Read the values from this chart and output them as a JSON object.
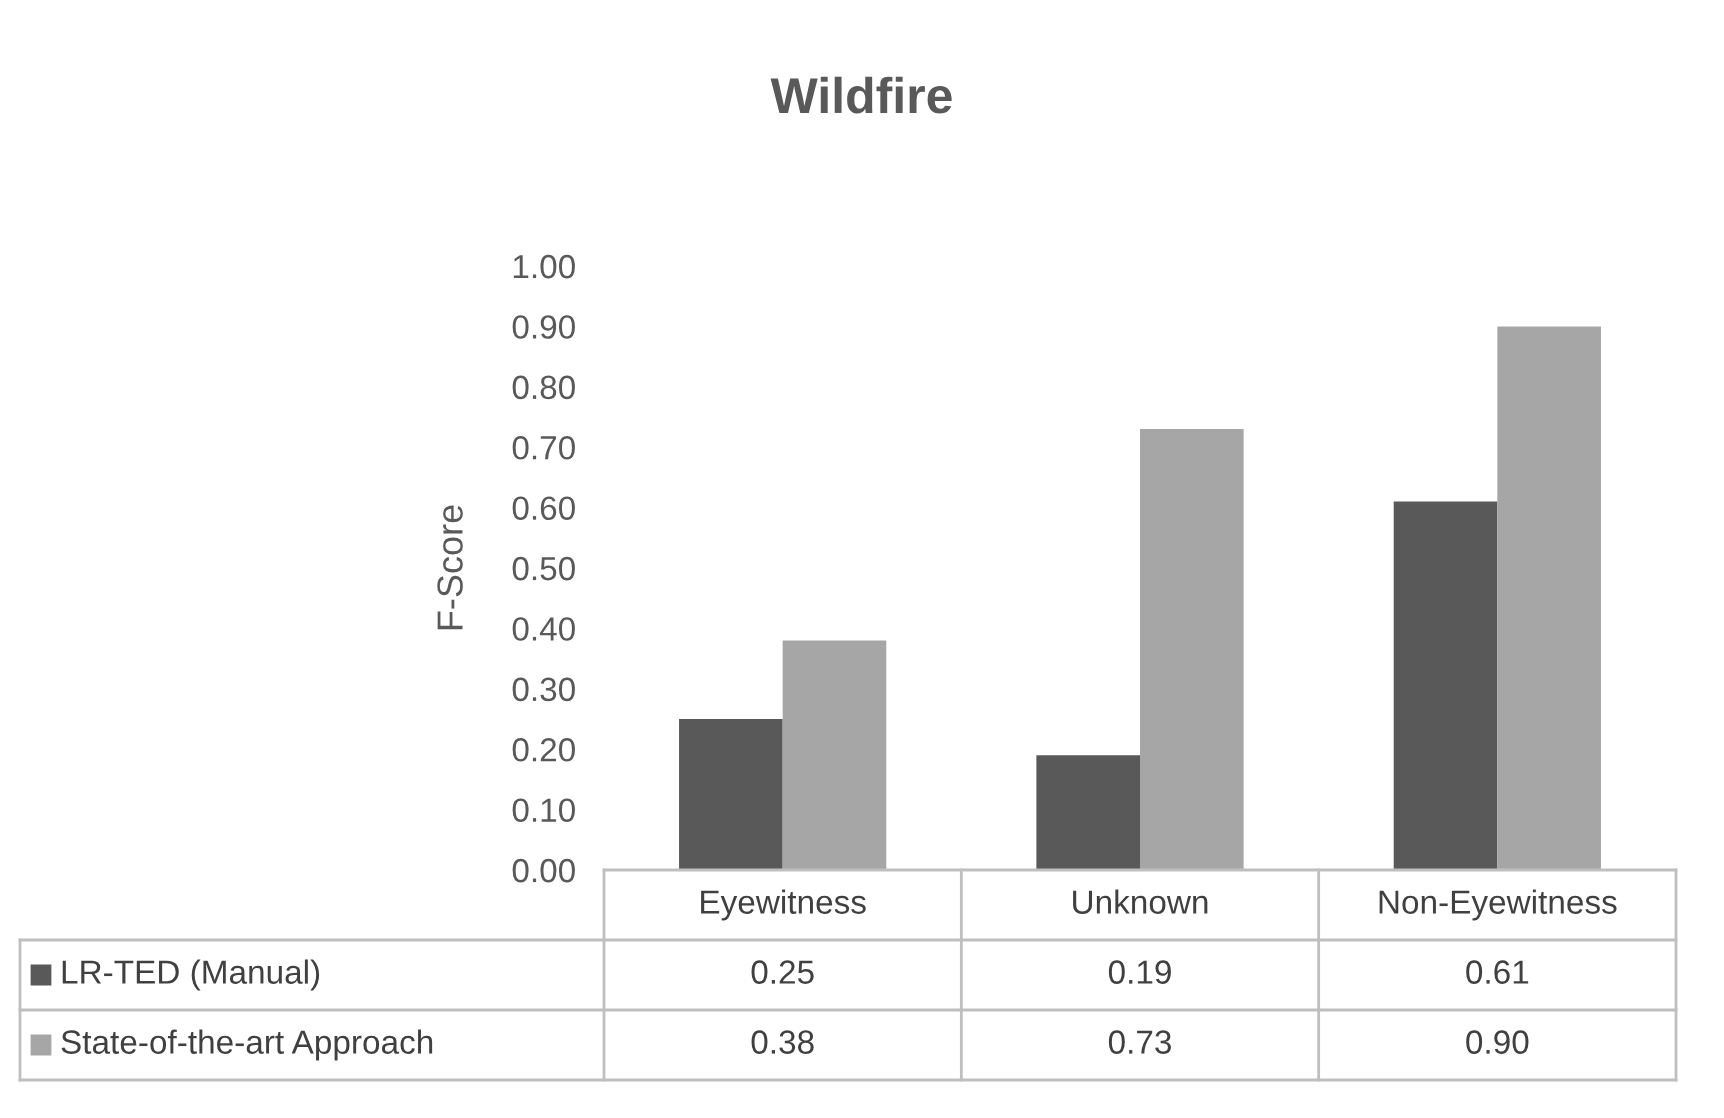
{
  "chart_data": {
    "type": "bar",
    "title": "Wildfire",
    "ylabel": "F-Score",
    "categories": [
      "Eyewitness",
      "Unknown",
      "Non-Eyewitness"
    ],
    "series": [
      {
        "name": "LR-TED (Manual)",
        "color": "#595959",
        "values": [
          0.25,
          0.19,
          0.61
        ],
        "value_labels": [
          "0.25",
          "0.19",
          "0.61"
        ]
      },
      {
        "name": "State-of-the-art Approach",
        "color": "#a6a6a6",
        "values": [
          0.38,
          0.73,
          0.9
        ],
        "value_labels": [
          "0.38",
          "0.73",
          "0.90"
        ]
      }
    ],
    "ylim": [
      0,
      1
    ],
    "yticks": [
      {
        "value": 0,
        "label": "0.00"
      },
      {
        "value": 0.1,
        "label": "0.10"
      },
      {
        "value": 0.2,
        "label": "0.20"
      },
      {
        "value": 0.3,
        "label": "0.30"
      },
      {
        "value": 0.4,
        "label": "0.40"
      },
      {
        "value": 0.5,
        "label": "0.50"
      },
      {
        "value": 0.6,
        "label": "0.60"
      },
      {
        "value": 0.7,
        "label": "0.70"
      },
      {
        "value": 0.8,
        "label": "0.80"
      },
      {
        "value": 0.9,
        "label": "0.90"
      },
      {
        "value": 1,
        "label": "1.00"
      }
    ],
    "grid": false,
    "legend": "bottom"
  }
}
